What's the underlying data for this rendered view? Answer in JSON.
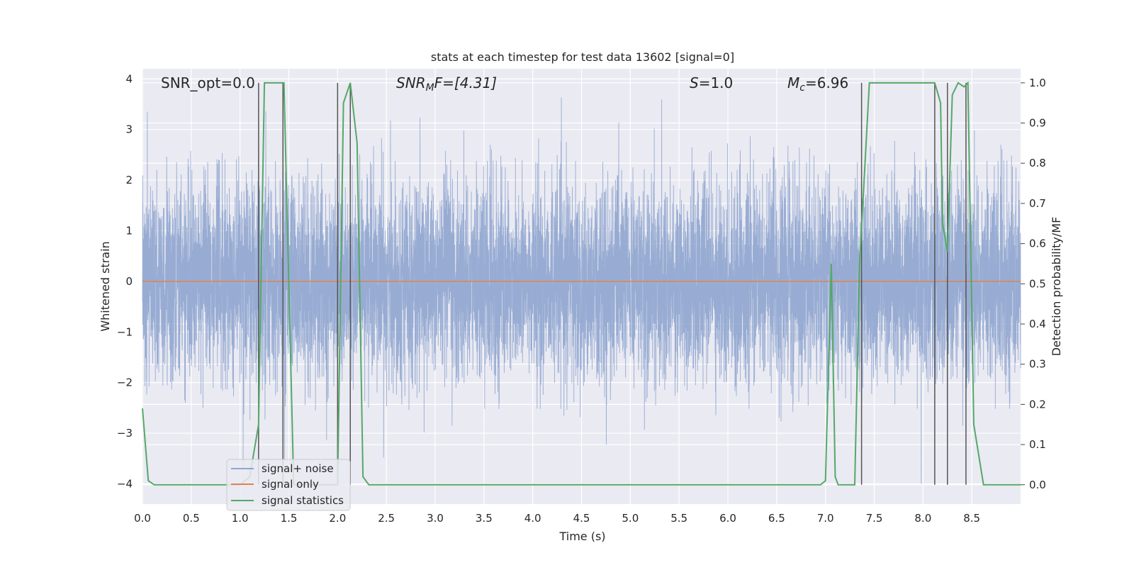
{
  "chart_data": {
    "type": "line",
    "title": "stats at each timestep for test data 13602 [signal=0]",
    "xlabel": "Time (s)",
    "ylabel": "Whitened strain",
    "y2label": "Detection probability/MF",
    "xlim": [
      0,
      9.0
    ],
    "ylim": [
      -4.4,
      4.2
    ],
    "y2lim": [
      -0.048,
      1.035
    ],
    "xticks": [
      "0.0",
      "0.5",
      "1.0",
      "1.5",
      "2.0",
      "2.5",
      "3.0",
      "3.5",
      "4.0",
      "4.5",
      "5.0",
      "5.5",
      "6.0",
      "6.5",
      "7.0",
      "7.5",
      "8.0",
      "8.5"
    ],
    "yticks": [
      "−4",
      "−3",
      "−2",
      "−1",
      "0",
      "1",
      "2",
      "3",
      "4"
    ],
    "y2ticks": [
      "0.0",
      "0.1",
      "0.2",
      "0.3",
      "0.4",
      "0.5",
      "0.6",
      "0.7",
      "0.8",
      "0.9",
      "1.0"
    ],
    "grid": true,
    "legend_placement": "lower-left",
    "annotations": {
      "snr_opt": "SNR_opt=0.0",
      "snr_mf_label": "SNR",
      "snr_mf_sub": "M",
      "snr_mf_tail": "F=[4.31]",
      "s_label": "S",
      "s_tail": "=1.0",
      "mc_label": "M",
      "mc_sub": "c",
      "mc_tail": "=6.96"
    },
    "colors": {
      "noise": "#8fa5cf",
      "signal": "#dd8452",
      "stats": "#55a868",
      "vlines": "#555555",
      "background": "#eaeaf2"
    },
    "series": [
      {
        "name": "signal+ noise",
        "description_values": {
          "min": -4.0,
          "max": 3.85,
          "sample_rate_hz": 2048
        }
      },
      {
        "name": "signal only",
        "x": [
          0.0,
          9.0
        ],
        "y": [
          0.0,
          0.0
        ]
      },
      {
        "name": "signal statistics",
        "x": [
          0.0,
          0.06,
          0.12,
          1.0,
          1.1,
          1.19,
          1.25,
          1.45,
          1.55,
          1.56,
          1.9,
          2.0,
          2.06,
          2.13,
          2.2,
          2.26,
          2.32,
          6.8,
          6.95,
          7.0,
          7.06,
          7.1,
          7.13,
          7.2,
          7.3,
          7.35,
          7.45,
          7.9,
          8.12,
          8.18,
          8.2,
          8.25,
          8.3,
          8.36,
          8.42,
          8.46,
          8.52,
          8.62,
          9.0
        ],
        "y": [
          0.19,
          0.01,
          0.0,
          0.0,
          0.02,
          0.15,
          1.0,
          1.0,
          0.0,
          0.0,
          0.0,
          0.0,
          0.95,
          1.0,
          0.85,
          0.02,
          0.0,
          0.0,
          0.0,
          0.01,
          0.55,
          0.02,
          0.0,
          0.0,
          0.0,
          0.55,
          1.0,
          1.0,
          1.0,
          0.95,
          0.65,
          0.58,
          0.97,
          1.0,
          0.99,
          1.0,
          0.15,
          0.0,
          0.0
        ]
      }
    ],
    "vlines_x": [
      1.19,
      1.44,
      2.0,
      2.13,
      7.37,
      8.12,
      8.25,
      8.44
    ]
  }
}
